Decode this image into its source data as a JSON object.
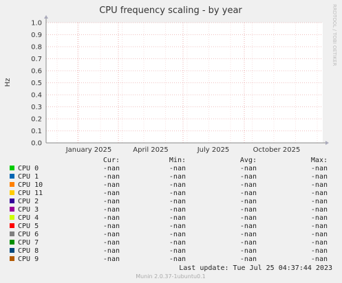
{
  "chart_data": {
    "type": "line",
    "title": "CPU frequency scaling - by year",
    "ylabel": "Hz",
    "side_label": "RRDTOOL / TOBI OETIKER",
    "ylim": [
      0,
      1.0
    ],
    "y_ticks": [
      "0.0",
      "0.1",
      "0.2",
      "0.3",
      "0.4",
      "0.5",
      "0.6",
      "0.7",
      "0.8",
      "0.9",
      "1.0"
    ],
    "x_ticks": [
      "January 2025",
      "April 2025",
      "July 2025",
      "October 2025"
    ],
    "grid": true,
    "series": [
      {
        "name": "CPU 0",
        "color": "#00cc00",
        "values": []
      },
      {
        "name": "CPU 1",
        "color": "#0066b3",
        "values": []
      },
      {
        "name": "CPU 10",
        "color": "#ff8000",
        "values": []
      },
      {
        "name": "CPU 11",
        "color": "#ffcc00",
        "values": []
      },
      {
        "name": "CPU 2",
        "color": "#330099",
        "values": []
      },
      {
        "name": "CPU 3",
        "color": "#990099",
        "values": []
      },
      {
        "name": "CPU 4",
        "color": "#ccff00",
        "values": []
      },
      {
        "name": "CPU 5",
        "color": "#ff0000",
        "values": []
      },
      {
        "name": "CPU 6",
        "color": "#808080",
        "values": []
      },
      {
        "name": "CPU 7",
        "color": "#008f00",
        "values": []
      },
      {
        "name": "CPU 8",
        "color": "#00487d",
        "values": []
      },
      {
        "name": "CPU 9",
        "color": "#b35a00",
        "values": []
      }
    ]
  },
  "legend_table": {
    "headers": [
      "Cur:",
      "Min:",
      "Avg:",
      "Max:"
    ],
    "rows": [
      {
        "label": "CPU 0",
        "cur": "-nan",
        "min": "-nan",
        "avg": "-nan",
        "max": "-nan"
      },
      {
        "label": "CPU 1",
        "cur": "-nan",
        "min": "-nan",
        "avg": "-nan",
        "max": "-nan"
      },
      {
        "label": "CPU 10",
        "cur": "-nan",
        "min": "-nan",
        "avg": "-nan",
        "max": "-nan"
      },
      {
        "label": "CPU 11",
        "cur": "-nan",
        "min": "-nan",
        "avg": "-nan",
        "max": "-nan"
      },
      {
        "label": "CPU 2",
        "cur": "-nan",
        "min": "-nan",
        "avg": "-nan",
        "max": "-nan"
      },
      {
        "label": "CPU 3",
        "cur": "-nan",
        "min": "-nan",
        "avg": "-nan",
        "max": "-nan"
      },
      {
        "label": "CPU 4",
        "cur": "-nan",
        "min": "-nan",
        "avg": "-nan",
        "max": "-nan"
      },
      {
        "label": "CPU 5",
        "cur": "-nan",
        "min": "-nan",
        "avg": "-nan",
        "max": "-nan"
      },
      {
        "label": "CPU 6",
        "cur": "-nan",
        "min": "-nan",
        "avg": "-nan",
        "max": "-nan"
      },
      {
        "label": "CPU 7",
        "cur": "-nan",
        "min": "-nan",
        "avg": "-nan",
        "max": "-nan"
      },
      {
        "label": "CPU 8",
        "cur": "-nan",
        "min": "-nan",
        "avg": "-nan",
        "max": "-nan"
      },
      {
        "label": "CPU 9",
        "cur": "-nan",
        "min": "-nan",
        "avg": "-nan",
        "max": "-nan"
      }
    ]
  },
  "footer": {
    "last_update": "Last update: Tue Jul 25 04:37:44 2023",
    "version": "Munin 2.0.37-1ubuntu0.1"
  }
}
